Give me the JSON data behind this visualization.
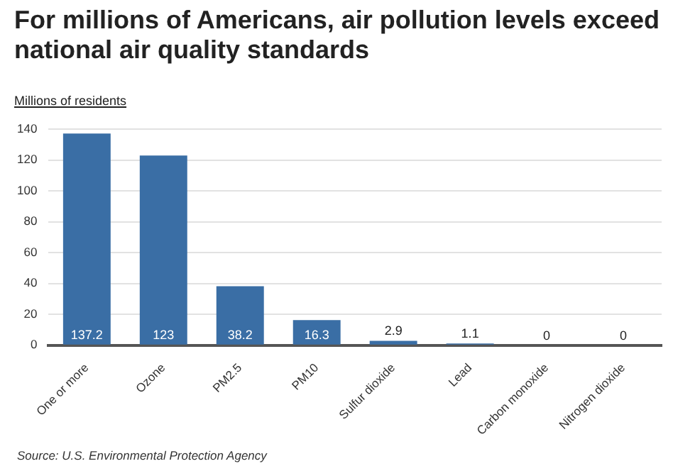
{
  "chart_data": {
    "type": "bar",
    "title": "For millions of Americans, air pollution levels exceed national air quality standards",
    "ylabel": "Millions of residents",
    "categories": [
      "One or more",
      "Ozone",
      "PM2.5",
      "PM10",
      "Sulfur dioxide",
      "Lead",
      "Carbon monoxide",
      "Nitrogen dioxide"
    ],
    "values": [
      137.2,
      123,
      38.2,
      16.3,
      2.9,
      1.1,
      0,
      0
    ],
    "color": "#3a6ea5",
    "ylim": [
      0,
      140
    ],
    "yticks": [
      0,
      20,
      40,
      60,
      80,
      100,
      120,
      140
    ],
    "grid": "y",
    "data_labels": true,
    "annotations": [
      "Source: U.S. Environmental Protection Agency"
    ]
  }
}
